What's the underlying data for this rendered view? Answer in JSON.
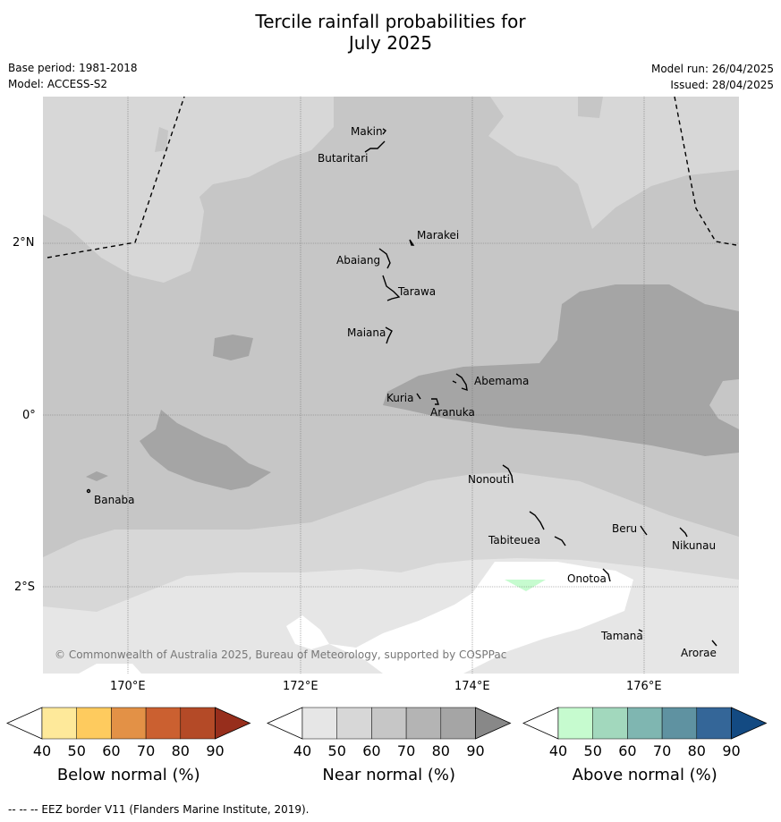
{
  "title": {
    "line1": "Tercile rainfall probabilities for",
    "line2": "July 2025"
  },
  "meta": {
    "base_period": "Base period: 1981-2018",
    "model": "Model: ACCESS-S2",
    "model_run": "Model run: 26/04/2025",
    "issued": "Issued: 28/04/2025"
  },
  "map": {
    "lat_labels": [
      "2°N",
      "0°",
      "2°S"
    ],
    "lon_labels": [
      "170°E",
      "172°E",
      "174°E",
      "176°E"
    ],
    "islands": [
      "Makin",
      "Butaritari",
      "Marakei",
      "Abaiang",
      "Tarawa",
      "Maiana",
      "Abemama",
      "Kuria",
      "Aranuka",
      "Banaba",
      "Nonouti",
      "Tabiteuea",
      "Beru",
      "Nikunau",
      "Onotoa",
      "Tamana",
      "Arorae"
    ],
    "copyright": "© Commonwealth of Australia 2025, Bureau of Meteorology, supported by COSPPac"
  },
  "colorbars": [
    {
      "title": "Below normal (%)",
      "ticks": [
        "40",
        "50",
        "60",
        "70",
        "80",
        "90"
      ],
      "colors": [
        "#ffffff",
        "#fee99a",
        "#fecb5e",
        "#e39146",
        "#cb6030",
        "#b44a27",
        "#972e1c"
      ]
    },
    {
      "title": "Near normal (%)",
      "ticks": [
        "40",
        "50",
        "60",
        "70",
        "80",
        "90"
      ],
      "colors": [
        "#ffffff",
        "#e6e6e6",
        "#d7d7d7",
        "#c6c6c6",
        "#b4b4b4",
        "#a5a5a5",
        "#888888"
      ]
    },
    {
      "title": "Above normal (%)",
      "ticks": [
        "40",
        "50",
        "60",
        "70",
        "80",
        "90"
      ],
      "colors": [
        "#ffffff",
        "#c6fbcf",
        "#a2d8bd",
        "#7fb6b1",
        "#5f92a1",
        "#346698",
        "#134a82"
      ]
    }
  ],
  "footer": "--  --  -- EEZ border V11 (Flanders Marine Institute, 2019)."
}
